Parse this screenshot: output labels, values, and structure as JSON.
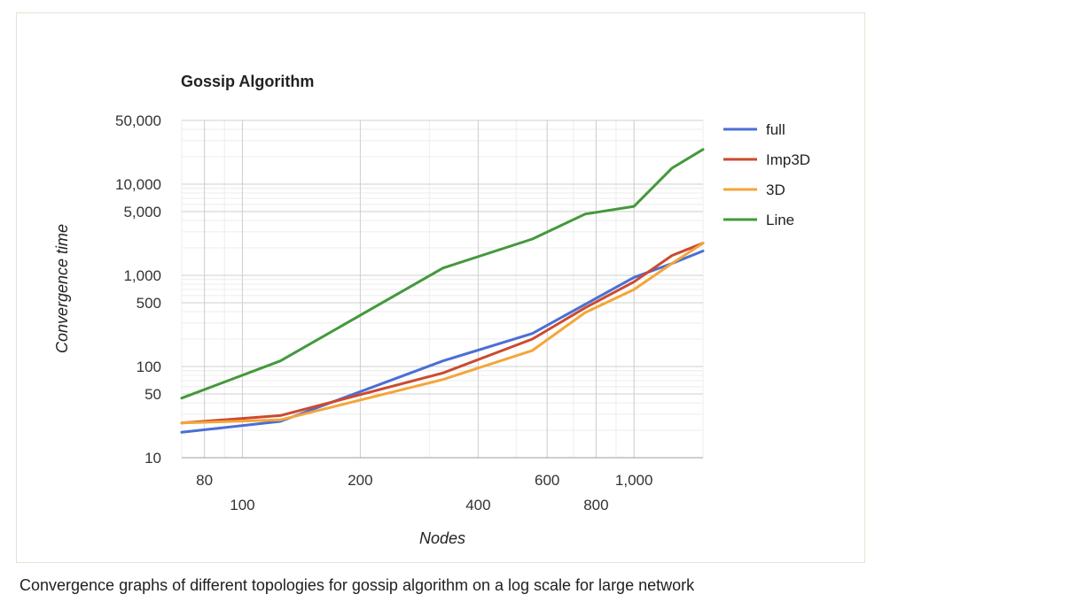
{
  "chart_data": {
    "type": "line",
    "title": "Gossip Algorithm",
    "xlabel": "Nodes",
    "ylabel": "Convergence time",
    "xscale": "log",
    "yscale": "log",
    "xlim": [
      70,
      1500
    ],
    "ylim": [
      10,
      50000
    ],
    "grid": true,
    "legend_position": "right",
    "x": [
      70,
      125,
      325,
      550,
      750,
      1000,
      1250,
      1500
    ],
    "x_ticks": [
      {
        "value": 80,
        "label": "80"
      },
      {
        "value": 100,
        "label": "100"
      },
      {
        "value": 200,
        "label": "200"
      },
      {
        "value": 400,
        "label": "400"
      },
      {
        "value": 600,
        "label": "600"
      },
      {
        "value": 800,
        "label": "800"
      },
      {
        "value": 1000,
        "label": "1,000"
      }
    ],
    "y_ticks": [
      {
        "value": 10,
        "label": "10"
      },
      {
        "value": 50,
        "label": "50"
      },
      {
        "value": 100,
        "label": "100"
      },
      {
        "value": 500,
        "label": "500"
      },
      {
        "value": 1000,
        "label": "1,000"
      },
      {
        "value": 5000,
        "label": "5,000"
      },
      {
        "value": 10000,
        "label": "10,000"
      },
      {
        "value": 50000,
        "label": "50,000"
      }
    ],
    "series": [
      {
        "name": "full",
        "color": "#4a6fd4",
        "values": [
          19,
          25,
          115,
          230,
          480,
          950,
          1350,
          1850
        ]
      },
      {
        "name": "Imp3D",
        "color": "#cc4a2e",
        "values": [
          24,
          29,
          85,
          200,
          440,
          850,
          1650,
          2250
        ]
      },
      {
        "name": "3D",
        "color": "#f4a53a",
        "values": [
          24,
          26,
          72,
          150,
          390,
          700,
          1350,
          2250
        ]
      },
      {
        "name": "Line",
        "color": "#43993a",
        "values": [
          45,
          115,
          1200,
          2500,
          4700,
          5700,
          15000,
          24000
        ]
      }
    ]
  },
  "caption": "Convergence graphs of different topologies for gossip algorithm on a log scale for large network"
}
